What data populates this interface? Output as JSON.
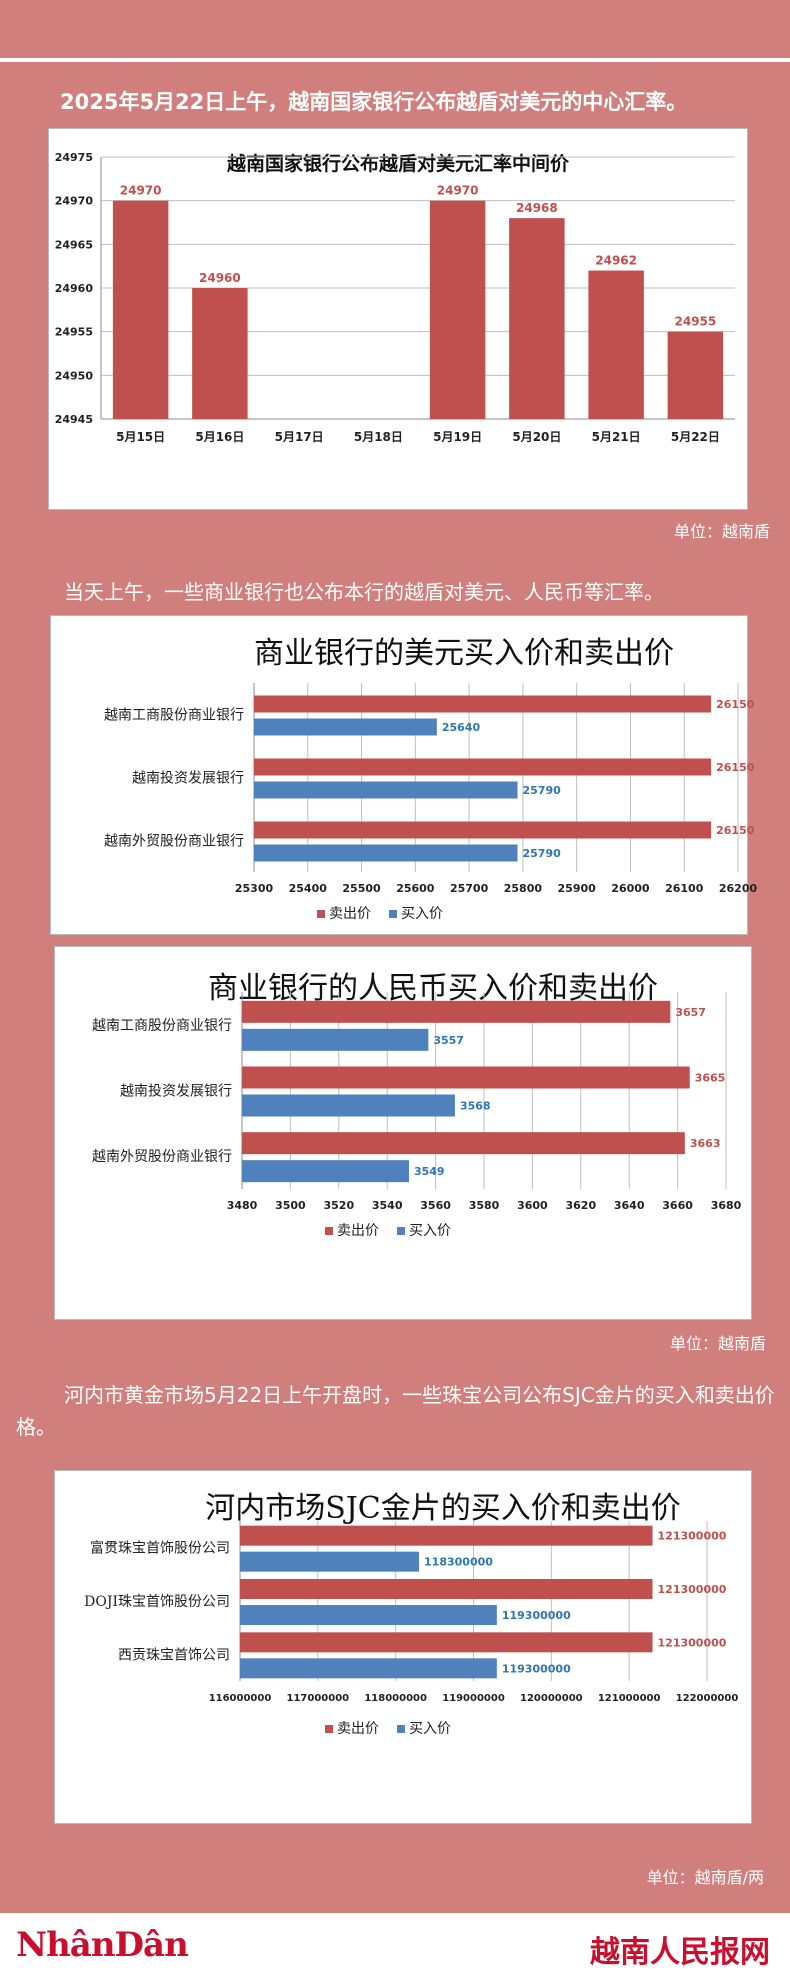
{
  "intro1": "2025年5月22日上午，越南国家银行公布越盾对美元的中心汇率。",
  "intro2": "当天上午，一些商业银行也公布本行的越盾对美元、人民币等汇率。",
  "intro3": "河内市黄金市场5月22日上午开盘时，一些珠宝公司公布SJC金片的买入和卖出价格。",
  "unit1": "单位：越南盾",
  "unit2": "单位：越南盾",
  "unit3": "单位：越南盾/两",
  "footer": {
    "left_brand": "NhânDân",
    "right_brand": "越南人民报网"
  },
  "colors": {
    "sell": "#c0504d",
    "buy": "#4f81bd",
    "background": "#d17f7d"
  },
  "chart_data": [
    {
      "type": "bar",
      "title": "越南国家银行公布越盾对美元汇率中间价",
      "categories": [
        "5月15日",
        "5月16日",
        "5月17日",
        "5月18日",
        "5月19日",
        "5月20日",
        "5月21日",
        "5月22日"
      ],
      "values": [
        24970,
        24960,
        null,
        null,
        24970,
        24968,
        24962,
        24955
      ],
      "data_labels": [
        "24970",
        "24960",
        "",
        "",
        "24970",
        "24968",
        "24962",
        "24955"
      ],
      "ylim": [
        24945,
        24975
      ],
      "yticks": [
        "24945",
        "24950",
        "24955",
        "24960",
        "24965",
        "24970",
        "24975"
      ],
      "grid": true,
      "color": "#c0504d"
    },
    {
      "type": "bar",
      "orientation": "horizontal",
      "title": "商业银行的美元买入价和卖出价",
      "categories": [
        "越南工商股份商业银行",
        "越南投资发展银行",
        "越南外贸股份商业银行"
      ],
      "series": [
        {
          "name": "卖出价",
          "values": [
            26150,
            26150,
            26150
          ],
          "labels": [
            "26150",
            "26150",
            "26150"
          ]
        },
        {
          "name": "买入价",
          "values": [
            25640,
            25790,
            25790
          ],
          "labels": [
            "25640",
            "25790",
            "25790"
          ]
        }
      ],
      "xlim": [
        25300,
        26200
      ],
      "xticks": [
        "25300",
        "25400",
        "25500",
        "25600",
        "25700",
        "25800",
        "25900",
        "26000",
        "26100",
        "26200"
      ],
      "legend": "bottom",
      "grid": true
    },
    {
      "type": "bar",
      "orientation": "horizontal",
      "title": "商业银行的人民币买入价和卖出价",
      "categories": [
        "越南工商股份商业银行",
        "越南投资发展银行",
        "越南外贸股份商业银行"
      ],
      "series": [
        {
          "name": "卖出价",
          "values": [
            3657,
            3665,
            3663
          ],
          "labels": [
            "3657",
            "3665",
            "3663"
          ]
        },
        {
          "name": "买入价",
          "values": [
            3557,
            3568,
            3549
          ],
          "labels": [
            "3557",
            "3568",
            "3549"
          ]
        }
      ],
      "xlim": [
        3480,
        3680
      ],
      "xticks": [
        "3480",
        "3500",
        "3520",
        "3540",
        "3560",
        "3580",
        "3600",
        "3620",
        "3640",
        "3660",
        "3680"
      ],
      "legend": "bottom",
      "grid": true
    },
    {
      "type": "bar",
      "orientation": "horizontal",
      "title": "河内市场SJC金片的买入价和卖出价",
      "categories": [
        "富贯珠宝首饰股份公司",
        "DOJI珠宝首饰股份公司",
        "西贡珠宝首饰公司"
      ],
      "series": [
        {
          "name": "卖出价",
          "values": [
            121300000,
            121300000,
            121300000
          ],
          "labels": [
            "121300000",
            "121300000",
            "121300000"
          ]
        },
        {
          "name": "买入价",
          "values": [
            118300000,
            119300000,
            119300000
          ],
          "labels": [
            "118300000",
            "119300000",
            "119300000"
          ]
        }
      ],
      "xlim": [
        116000000,
        122000000
      ],
      "xticks": [
        "116000000",
        "117000000",
        "118000000",
        "119000000",
        "120000000",
        "121000000",
        "122000000"
      ],
      "legend": "bottom",
      "grid": true
    }
  ]
}
